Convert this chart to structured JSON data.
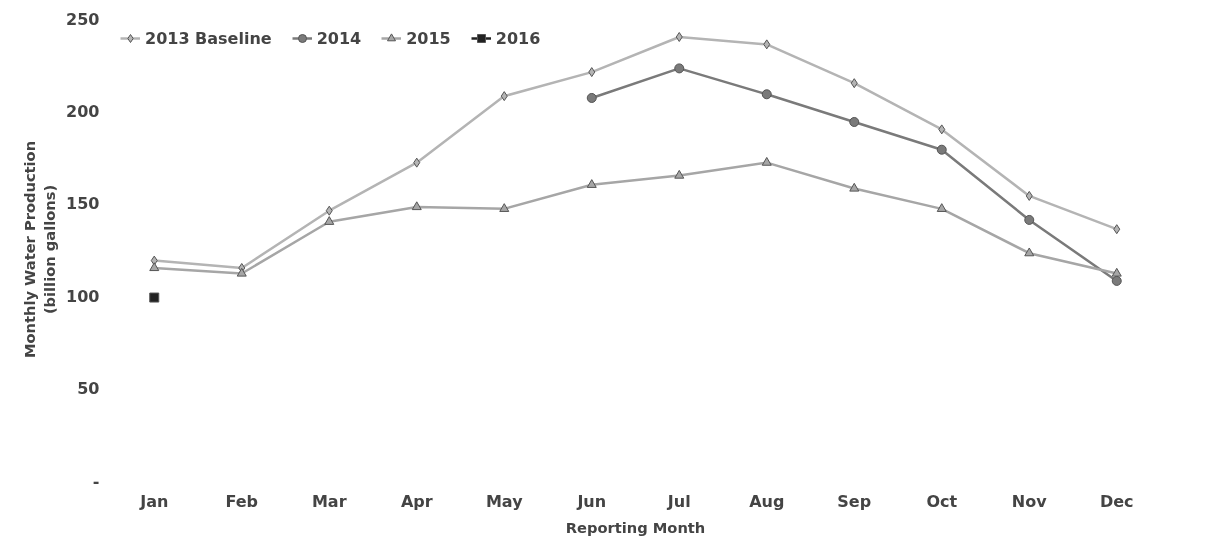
{
  "chart_data": {
    "type": "line",
    "xlabel": "Reporting Month",
    "ylabel": "Monthly Water Production\n(billion gallons)",
    "categories": [
      "Jan",
      "Feb",
      "Mar",
      "Apr",
      "May",
      "Jun",
      "Jul",
      "Aug",
      "Sep",
      "Oct",
      "Nov",
      "Dec"
    ],
    "ylim": [
      0,
      250
    ],
    "yticks": [
      {
        "value": 0,
        "label": "-"
      },
      50,
      100,
      150,
      200,
      250
    ],
    "grid": false,
    "legend": "top left",
    "line_style": "solid",
    "series": [
      {
        "name": "2013 Baseline",
        "color": "#b4b4b4",
        "marker": "diamond",
        "values": [
          119,
          115,
          146,
          172,
          208,
          221,
          240,
          236,
          215,
          190,
          154,
          136
        ]
      },
      {
        "name": "2014",
        "color": "#7a7a7a",
        "marker": "circle",
        "values": [
          null,
          null,
          null,
          null,
          null,
          207,
          223,
          209,
          194,
          179,
          141,
          108
        ]
      },
      {
        "name": "2015",
        "color": "#a6a6a6",
        "marker": "triangle",
        "values": [
          115,
          112,
          140,
          148,
          147,
          160,
          165,
          172,
          158,
          147,
          123,
          112
        ]
      },
      {
        "name": "2016",
        "color": "#222222",
        "marker": "square",
        "values": [
          99,
          null,
          null,
          null,
          null,
          null,
          null,
          null,
          null,
          null,
          null,
          null
        ]
      }
    ]
  }
}
